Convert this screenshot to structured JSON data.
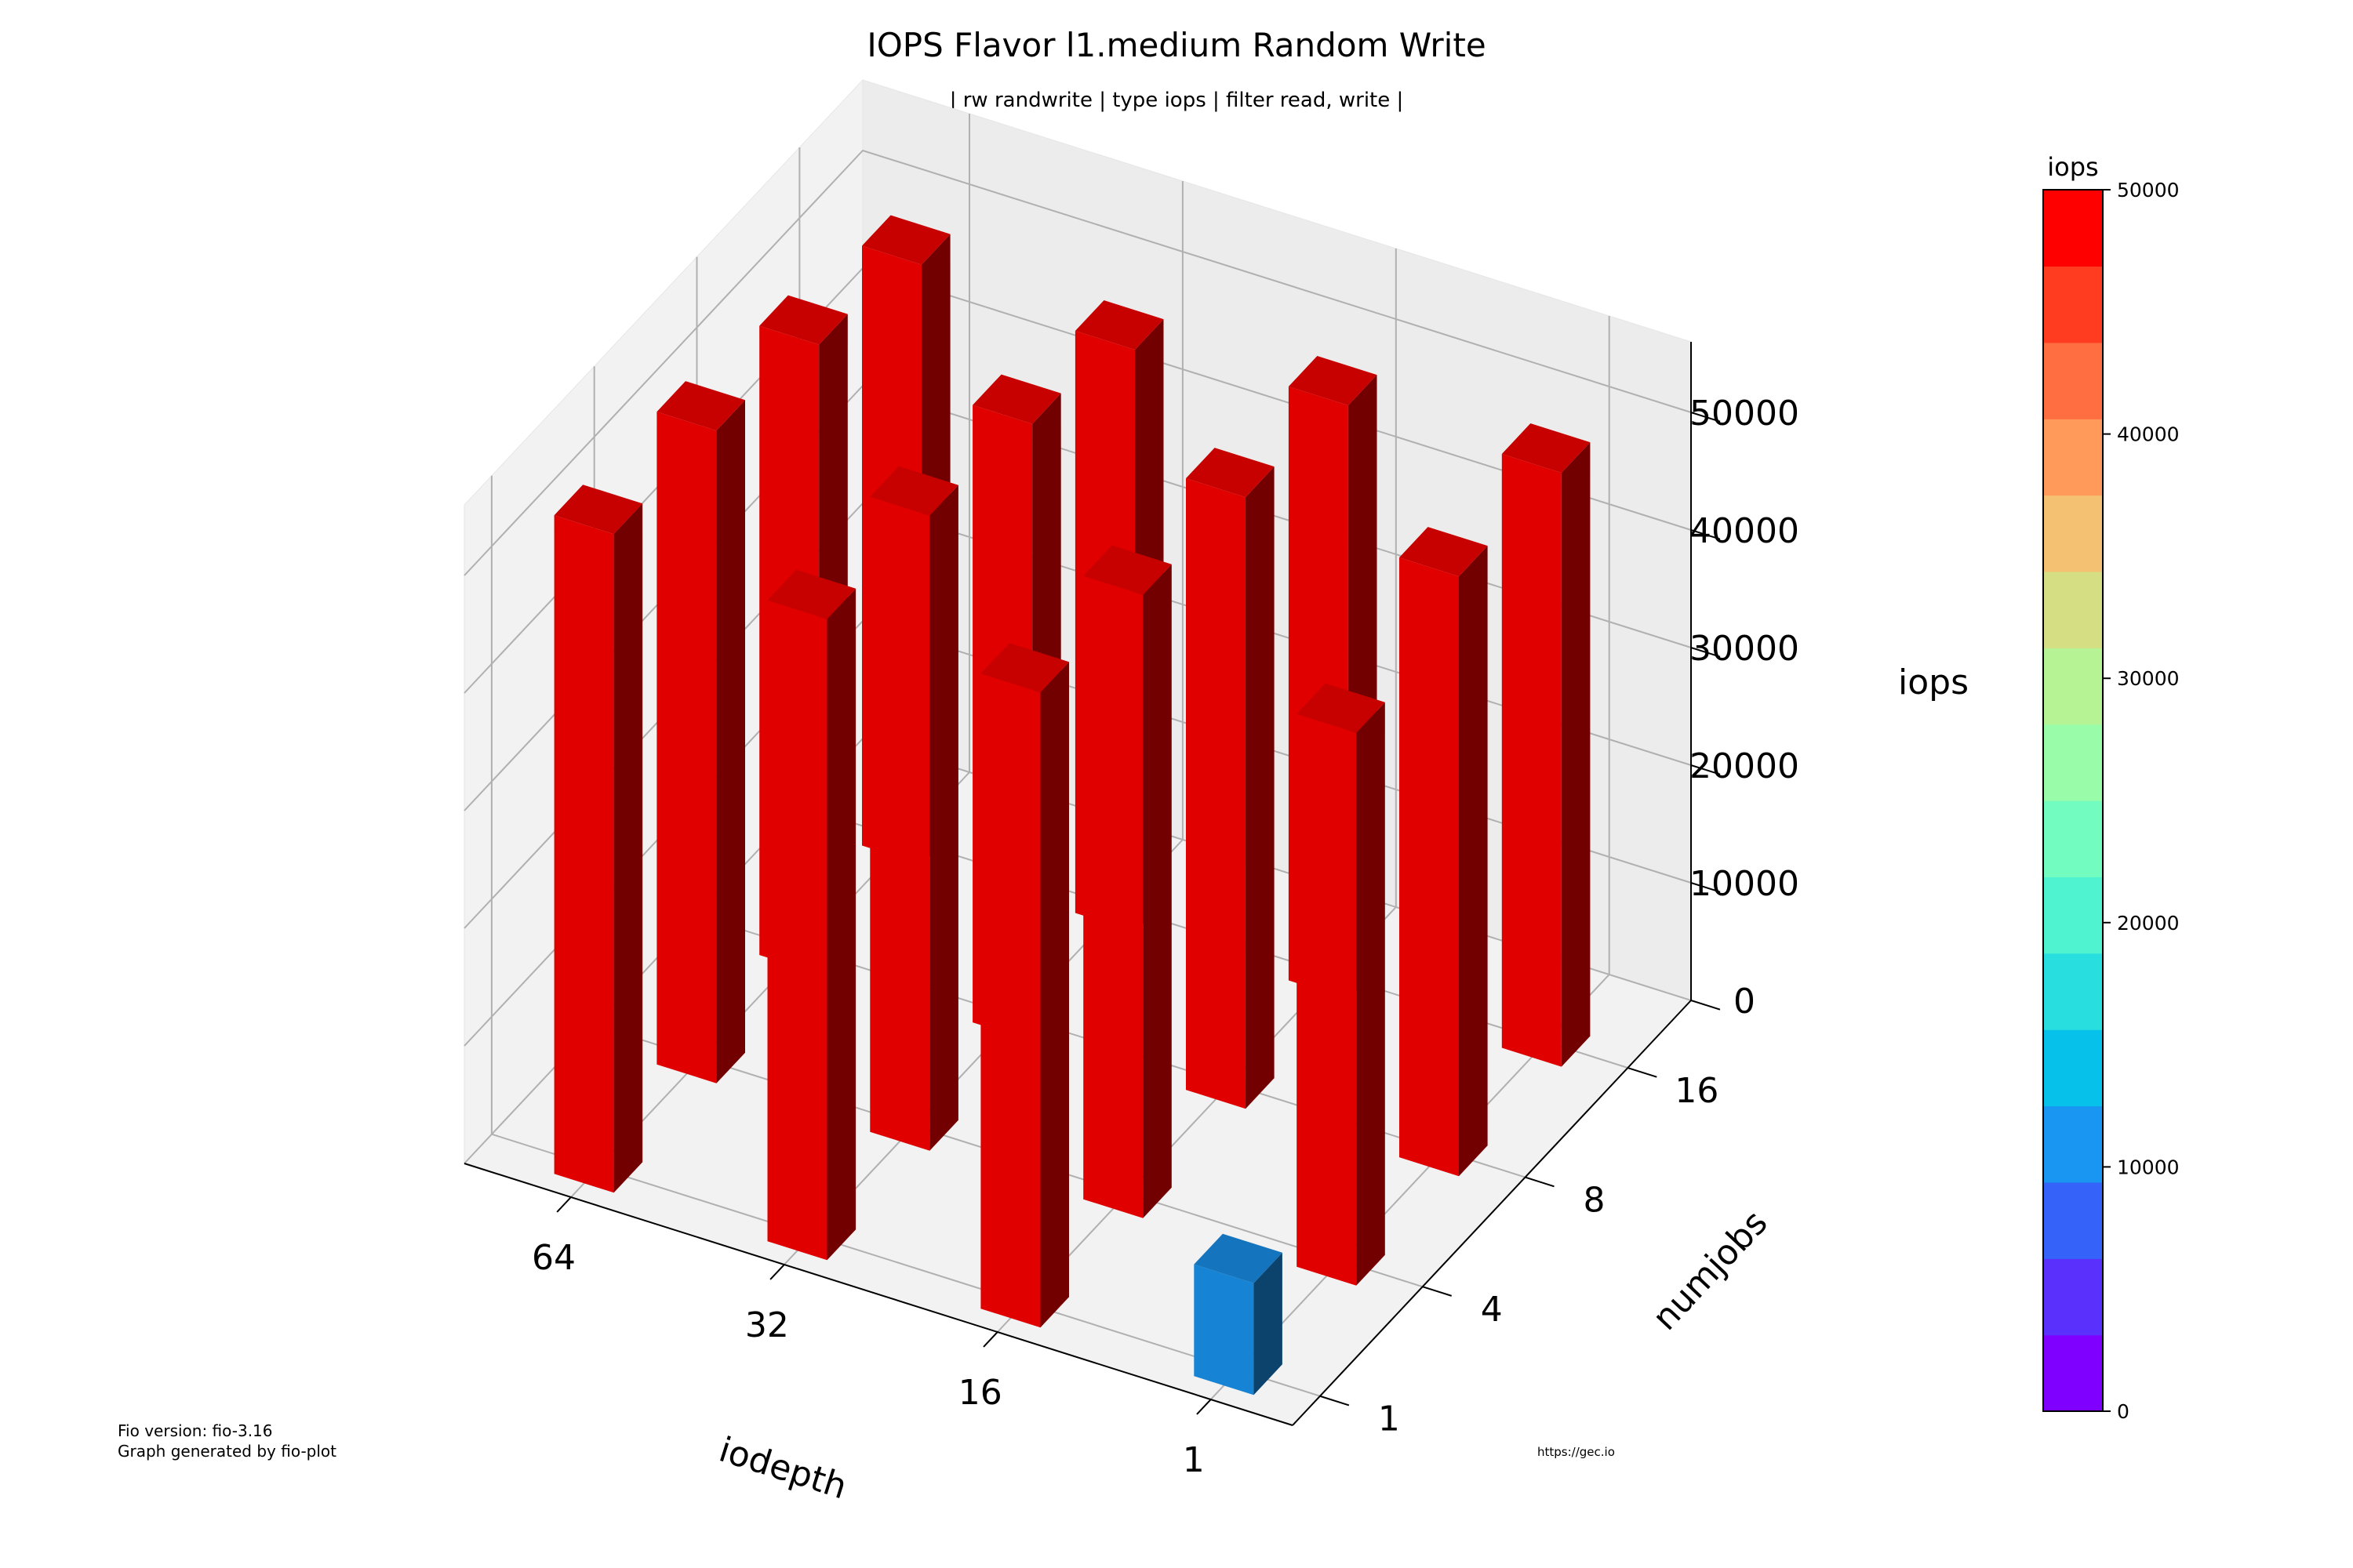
{
  "chart_data": {
    "type": "bar3d",
    "title": "IOPS Flavor l1.medium Random Write",
    "subtitle": "| rw randwrite | type iops | filter read, write |",
    "xlabel": "iodepth",
    "ylabel": "numjobs",
    "zlabel": "iops",
    "x_categories": [
      "1",
      "16",
      "32",
      "64"
    ],
    "y_categories": [
      "1",
      "4",
      "8",
      "16"
    ],
    "z_ticks": [
      "0",
      "10000",
      "20000",
      "30000",
      "40000",
      "50000"
    ],
    "zlim": [
      0,
      50000
    ],
    "values": [
      {
        "iodepth": "1",
        "numjobs": "1",
        "iops": 9500
      },
      {
        "iodepth": "1",
        "numjobs": "4",
        "iops": 47000
      },
      {
        "iodepth": "1",
        "numjobs": "8",
        "iops": 51000
      },
      {
        "iodepth": "1",
        "numjobs": "16",
        "iops": 50500
      },
      {
        "iodepth": "16",
        "numjobs": "1",
        "iops": 54000
      },
      {
        "iodepth": "16",
        "numjobs": "4",
        "iops": 53000
      },
      {
        "iodepth": "16",
        "numjobs": "8",
        "iops": 52000
      },
      {
        "iodepth": "16",
        "numjobs": "16",
        "iops": 50500
      },
      {
        "iodepth": "32",
        "numjobs": "1",
        "iops": 54500
      },
      {
        "iodepth": "32",
        "numjobs": "4",
        "iops": 54000
      },
      {
        "iodepth": "32",
        "numjobs": "8",
        "iops": 52500
      },
      {
        "iodepth": "32",
        "numjobs": "16",
        "iops": 49500
      },
      {
        "iodepth": "64",
        "numjobs": "1",
        "iops": 56000
      },
      {
        "iodepth": "64",
        "numjobs": "4",
        "iops": 55500
      },
      {
        "iodepth": "64",
        "numjobs": "8",
        "iops": 53500
      },
      {
        "iodepth": "64",
        "numjobs": "16",
        "iops": 51000
      }
    ],
    "colorbar": {
      "label": "iops",
      "ticks": [
        "0",
        "10000",
        "20000",
        "30000",
        "40000",
        "50000"
      ],
      "range": [
        0,
        50000
      ],
      "colors": [
        "#8000ff",
        "#5a30fd",
        "#3562f9",
        "#1995f2",
        "#06c1ea",
        "#28dede",
        "#4ff3d0",
        "#72fcc0",
        "#99fca9",
        "#b5f394",
        "#d5de82",
        "#f4c072",
        "#ff9a5a",
        "#ff6e40",
        "#ff3c20",
        "#ff0000"
      ]
    }
  },
  "footer": {
    "version": "Fio version: fio-3.16",
    "generated": "Graph generated by fio-plot",
    "url": "https://gec.io"
  }
}
